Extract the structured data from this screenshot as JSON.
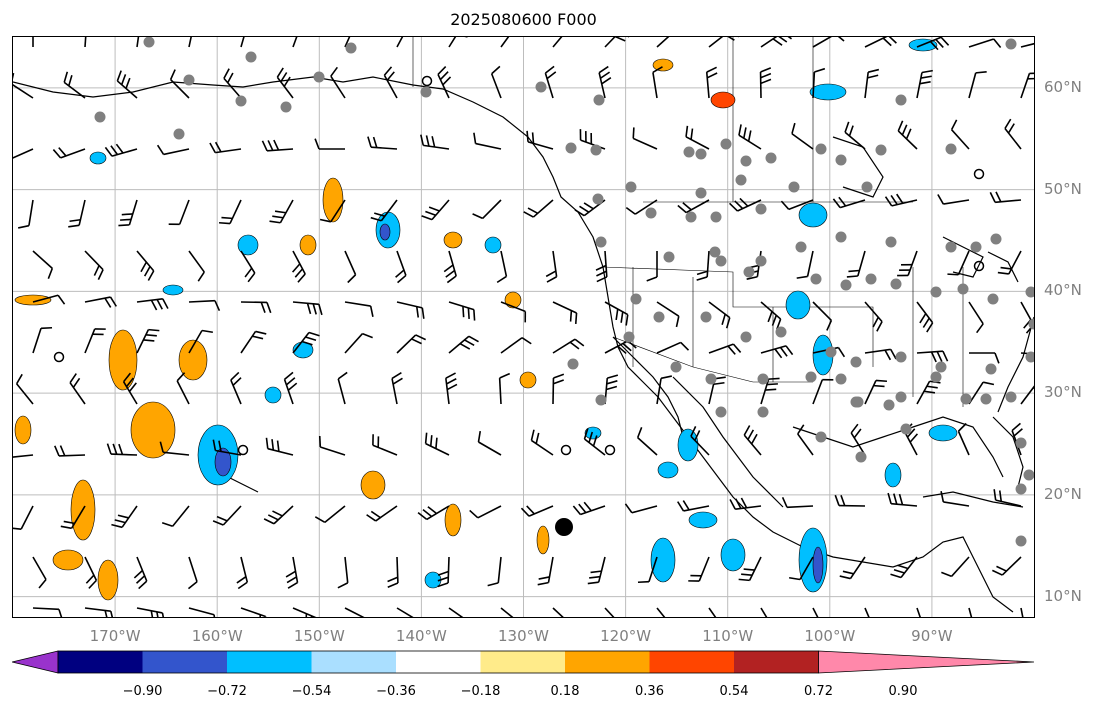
{
  "title": "2025080600 F000",
  "map": {
    "lon_range": [
      -180,
      -80
    ],
    "lat_range": [
      8,
      65
    ],
    "lon_labels": [
      "170°W",
      "160°W",
      "150°W",
      "140°W",
      "130°W",
      "120°W",
      "110°W",
      "100°W",
      "90°W"
    ],
    "lat_labels": [
      "60°N",
      "50°N",
      "40°N",
      "30°N",
      "20°N",
      "10°N"
    ]
  },
  "colorbar": {
    "colors": [
      "#9933cc",
      "#000080",
      "#3355cc",
      "#00bfff",
      "#aadfff",
      "#ffffff",
      "#ffeb8a",
      "#ffa500",
      "#ff4500",
      "#b22222",
      "#ff88aa"
    ],
    "tick_labels": [
      "−0.90",
      "−0.72",
      "−0.54",
      "−0.36",
      "−0.18",
      "0.18",
      "0.36",
      "0.54",
      "0.72",
      "0.90"
    ]
  },
  "icons": [
    "station-marker-icon",
    "wind-barb-icon",
    "calm-wind-circle-icon"
  ]
}
